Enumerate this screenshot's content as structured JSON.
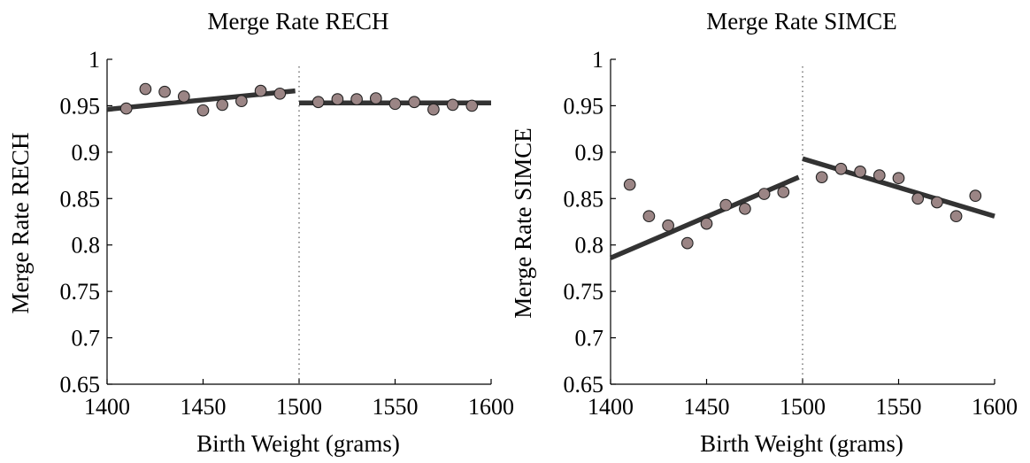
{
  "chart_data": [
    {
      "type": "scatter",
      "title": "Merge Rate RECH",
      "xlabel": "Birth Weight (grams)",
      "ylabel": "Merge Rate RECH",
      "xlim": [
        1400,
        1600
      ],
      "ylim": [
        0.65,
        1
      ],
      "xticks": [
        "1400",
        "1450",
        "1500",
        "1550",
        "1600"
      ],
      "yticks": [
        "0.65",
        "0.7",
        "0.75",
        "0.8",
        "0.85",
        "0.9",
        "0.95",
        "1"
      ],
      "cutoff": 1500,
      "series": [
        {
          "x": [
            1410,
            1420,
            1430,
            1440,
            1450,
            1460,
            1470,
            1480,
            1490,
            1510,
            1520,
            1530,
            1540,
            1550,
            1560,
            1570,
            1580,
            1590
          ],
          "y": [
            0.947,
            0.968,
            0.965,
            0.96,
            0.945,
            0.951,
            0.955,
            0.966,
            0.963,
            0.954,
            0.957,
            0.957,
            0.958,
            0.952,
            0.954,
            0.946,
            0.951,
            0.95
          ]
        }
      ],
      "fit_lines": [
        {
          "x": [
            1400,
            1498
          ],
          "y": [
            0.946,
            0.966
          ]
        },
        {
          "x": [
            1500,
            1600
          ],
          "y": [
            0.953,
            0.953
          ]
        }
      ]
    },
    {
      "type": "scatter",
      "title": "Merge Rate SIMCE",
      "xlabel": "Birth Weight (grams)",
      "ylabel": "Merge Rate SIMCE",
      "xlim": [
        1400,
        1600
      ],
      "ylim": [
        0.65,
        1
      ],
      "xticks": [
        "1400",
        "1450",
        "1500",
        "1550",
        "1600"
      ],
      "yticks": [
        "0.65",
        "0.7",
        "0.75",
        "0.8",
        "0.85",
        "0.9",
        "0.95",
        "1"
      ],
      "cutoff": 1500,
      "series": [
        {
          "x": [
            1410,
            1420,
            1430,
            1440,
            1450,
            1460,
            1470,
            1480,
            1490,
            1510,
            1520,
            1530,
            1540,
            1550,
            1560,
            1570,
            1580,
            1590
          ],
          "y": [
            0.865,
            0.831,
            0.821,
            0.802,
            0.823,
            0.843,
            0.839,
            0.855,
            0.857,
            0.873,
            0.882,
            0.879,
            0.875,
            0.872,
            0.85,
            0.846,
            0.831,
            0.853
          ]
        }
      ],
      "fit_lines": [
        {
          "x": [
            1400,
            1498
          ],
          "y": [
            0.786,
            0.873
          ]
        },
        {
          "x": [
            1500,
            1600
          ],
          "y": [
            0.893,
            0.831
          ]
        }
      ]
    }
  ]
}
